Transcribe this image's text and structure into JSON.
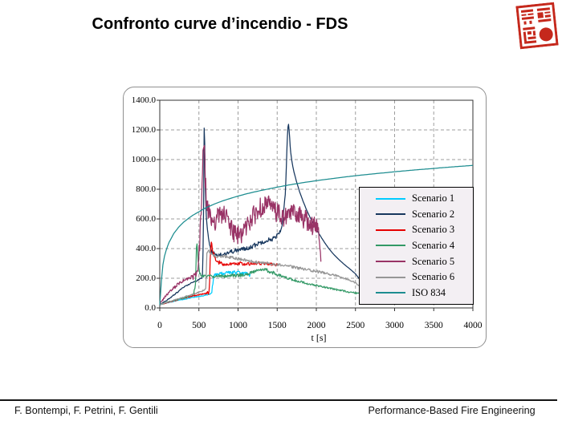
{
  "slide": {
    "title": "Confronto curve d’incendio - FDS"
  },
  "stamp": {
    "name": "red-chinese-seal",
    "color": "#c5281c"
  },
  "footer": {
    "authors": "F. Bontempi, F. Petrini, F. Gentili",
    "organization": "Performance-Based Fire Engineering"
  },
  "chart_data": {
    "type": "line",
    "title": "",
    "xlabel": "t [s]",
    "ylabel": "",
    "xlim": [
      0,
      4000
    ],
    "ylim": [
      0,
      1400
    ],
    "grid": true,
    "legend_position": "inside-right",
    "x_tick_labels": [
      "0",
      "500",
      "1000",
      "1500",
      "2000",
      "2500",
      "3000",
      "3500",
      "4000"
    ],
    "y_tick_labels": [
      "0.0",
      "200.0",
      "400.0",
      "600.0",
      "800.0",
      "1000.0",
      "1200.0",
      "1400.0"
    ],
    "series": [
      {
        "name": "Scenario 1",
        "color": "#00ccff",
        "dt": 7,
        "noise": [
          [
            0,
            2
          ],
          [
            640,
            3
          ],
          [
            690,
            14
          ],
          [
            1160,
            12
          ]
        ],
        "points": [
          [
            0,
            22
          ],
          [
            120,
            38
          ],
          [
            250,
            52
          ],
          [
            400,
            68
          ],
          [
            550,
            82
          ],
          [
            640,
            92
          ],
          [
            665,
            110
          ],
          [
            680,
            175
          ],
          [
            700,
            215
          ],
          [
            740,
            232
          ],
          [
            780,
            228
          ],
          [
            850,
            242
          ],
          [
            920,
            238
          ],
          [
            1000,
            240
          ],
          [
            1060,
            232
          ],
          [
            1120,
            228
          ],
          [
            1160,
            222
          ]
        ]
      },
      {
        "name": "Scenario 2",
        "color": "#17375e",
        "dt": 7,
        "noise": [
          [
            0,
            3
          ],
          [
            540,
            4
          ],
          [
            560,
            0
          ],
          [
            600,
            10
          ],
          [
            650,
            14
          ],
          [
            1500,
            16
          ],
          [
            1580,
            8
          ],
          [
            1640,
            0
          ],
          [
            2565,
            0
          ]
        ],
        "points": [
          [
            0,
            22
          ],
          [
            100,
            55
          ],
          [
            200,
            95
          ],
          [
            300,
            138
          ],
          [
            400,
            168
          ],
          [
            480,
            185
          ],
          [
            545,
            205
          ],
          [
            558,
            500
          ],
          [
            566,
            1215
          ],
          [
            572,
            1190
          ],
          [
            580,
            860
          ],
          [
            592,
            640
          ],
          [
            605,
            540
          ],
          [
            625,
            455
          ],
          [
            650,
            395
          ],
          [
            700,
            360
          ],
          [
            780,
            358
          ],
          [
            860,
            372
          ],
          [
            940,
            383
          ],
          [
            1020,
            392
          ],
          [
            1100,
            400
          ],
          [
            1180,
            415
          ],
          [
            1260,
            435
          ],
          [
            1340,
            452
          ],
          [
            1420,
            462
          ],
          [
            1480,
            475
          ],
          [
            1530,
            505
          ],
          [
            1570,
            570
          ],
          [
            1605,
            780
          ],
          [
            1630,
            1150
          ],
          [
            1642,
            1255
          ],
          [
            1655,
            1180
          ],
          [
            1670,
            1060
          ],
          [
            1690,
            980
          ],
          [
            1715,
            915
          ],
          [
            1745,
            855
          ],
          [
            1785,
            785
          ],
          [
            1830,
            720
          ],
          [
            1880,
            655
          ],
          [
            1930,
            600
          ],
          [
            1985,
            545
          ],
          [
            2040,
            495
          ],
          [
            2100,
            445
          ],
          [
            2160,
            400
          ],
          [
            2220,
            362
          ],
          [
            2290,
            325
          ],
          [
            2360,
            292
          ],
          [
            2430,
            262
          ],
          [
            2500,
            230
          ],
          [
            2565,
            185
          ]
        ]
      },
      {
        "name": "Scenario 3",
        "color": "#e60000",
        "dt": 7,
        "noise": [
          [
            0,
            3
          ],
          [
            600,
            5
          ],
          [
            640,
            25
          ],
          [
            700,
            18
          ],
          [
            800,
            12
          ],
          [
            1515,
            10
          ]
        ],
        "points": [
          [
            0,
            22
          ],
          [
            120,
            40
          ],
          [
            250,
            58
          ],
          [
            380,
            75
          ],
          [
            500,
            90
          ],
          [
            600,
            100
          ],
          [
            632,
            108
          ],
          [
            645,
            330
          ],
          [
            655,
            462
          ],
          [
            668,
            420
          ],
          [
            685,
            360
          ],
          [
            710,
            330
          ],
          [
            760,
            305
          ],
          [
            820,
            292
          ],
          [
            900,
            296
          ],
          [
            1000,
            302
          ],
          [
            1100,
            295
          ],
          [
            1200,
            300
          ],
          [
            1290,
            302
          ],
          [
            1380,
            296
          ],
          [
            1460,
            292
          ],
          [
            1515,
            288
          ]
        ]
      },
      {
        "name": "Scenario 4",
        "color": "#339966",
        "dt": 7,
        "noise": [
          [
            0,
            3
          ],
          [
            430,
            4
          ],
          [
            470,
            15
          ],
          [
            520,
            10
          ],
          [
            1400,
            12
          ],
          [
            1600,
            8
          ],
          [
            2565,
            5
          ]
        ],
        "points": [
          [
            0,
            22
          ],
          [
            120,
            42
          ],
          [
            250,
            60
          ],
          [
            360,
            76
          ],
          [
            430,
            92
          ],
          [
            455,
            150
          ],
          [
            472,
            455
          ],
          [
            488,
            330
          ],
          [
            505,
            245
          ],
          [
            525,
            218
          ],
          [
            600,
            212
          ],
          [
            700,
            214
          ],
          [
            800,
            214
          ],
          [
            900,
            220
          ],
          [
            1000,
            218
          ],
          [
            1090,
            226
          ],
          [
            1180,
            240
          ],
          [
            1255,
            256
          ],
          [
            1310,
            262
          ],
          [
            1370,
            254
          ],
          [
            1430,
            240
          ],
          [
            1510,
            224
          ],
          [
            1600,
            206
          ],
          [
            1700,
            190
          ],
          [
            1800,
            176
          ],
          [
            1900,
            162
          ],
          [
            2000,
            151
          ],
          [
            2100,
            141
          ],
          [
            2200,
            130
          ],
          [
            2300,
            119
          ],
          [
            2400,
            109
          ],
          [
            2500,
            100
          ],
          [
            2565,
            94
          ]
        ]
      },
      {
        "name": "Scenario 5",
        "color": "#993366",
        "dt": 6,
        "noise": [
          [
            0,
            6
          ],
          [
            400,
            14
          ],
          [
            490,
            30
          ],
          [
            520,
            90
          ],
          [
            600,
            80
          ],
          [
            700,
            68
          ],
          [
            2020,
            66
          ],
          [
            2045,
            20
          ],
          [
            2058,
            8
          ]
        ],
        "points": [
          [
            0,
            25
          ],
          [
            60,
            70
          ],
          [
            120,
            105
          ],
          [
            180,
            135
          ],
          [
            240,
            162
          ],
          [
            300,
            182
          ],
          [
            360,
            196
          ],
          [
            420,
            208
          ],
          [
            460,
            220
          ],
          [
            490,
            260
          ],
          [
            510,
            420
          ],
          [
            530,
            700
          ],
          [
            548,
            950
          ],
          [
            560,
            1140
          ],
          [
            572,
            1000
          ],
          [
            585,
            820
          ],
          [
            600,
            700
          ],
          [
            625,
            630
          ],
          [
            660,
            600
          ],
          [
            700,
            585
          ],
          [
            745,
            615
          ],
          [
            790,
            638
          ],
          [
            840,
            620
          ],
          [
            890,
            565
          ],
          [
            940,
            510
          ],
          [
            990,
            482
          ],
          [
            1040,
            498
          ],
          [
            1090,
            535
          ],
          [
            1140,
            575
          ],
          [
            1190,
            615
          ],
          [
            1240,
            648
          ],
          [
            1290,
            678
          ],
          [
            1340,
            700
          ],
          [
            1390,
            692
          ],
          [
            1440,
            672
          ],
          [
            1490,
            645
          ],
          [
            1540,
            622
          ],
          [
            1590,
            602
          ],
          [
            1640,
            618
          ],
          [
            1690,
            648
          ],
          [
            1740,
            640
          ],
          [
            1790,
            622
          ],
          [
            1840,
            602
          ],
          [
            1890,
            582
          ],
          [
            1940,
            562
          ],
          [
            1990,
            545
          ],
          [
            2025,
            530
          ],
          [
            2045,
            430
          ],
          [
            2058,
            310
          ]
        ]
      },
      {
        "name": "Scenario 6",
        "color": "#969696",
        "dt": 7,
        "noise": [
          [
            0,
            3
          ],
          [
            580,
            4
          ],
          [
            610,
            10
          ],
          [
            2000,
            9
          ],
          [
            2565,
            5
          ]
        ],
        "points": [
          [
            0,
            22
          ],
          [
            120,
            42
          ],
          [
            240,
            62
          ],
          [
            360,
            82
          ],
          [
            470,
            100
          ],
          [
            560,
            118
          ],
          [
            588,
            132
          ],
          [
            602,
            375
          ],
          [
            618,
            390
          ],
          [
            645,
            372
          ],
          [
            690,
            356
          ],
          [
            740,
            348
          ],
          [
            800,
            352
          ],
          [
            860,
            346
          ],
          [
            920,
            340
          ],
          [
            980,
            334
          ],
          [
            1050,
            327
          ],
          [
            1130,
            318
          ],
          [
            1210,
            310
          ],
          [
            1300,
            305
          ],
          [
            1400,
            300
          ],
          [
            1500,
            294
          ],
          [
            1600,
            285
          ],
          [
            1700,
            276
          ],
          [
            1800,
            266
          ],
          [
            1900,
            256
          ],
          [
            2000,
            246
          ],
          [
            2100,
            236
          ],
          [
            2200,
            224
          ],
          [
            2300,
            209
          ],
          [
            2400,
            192
          ],
          [
            2500,
            170
          ],
          [
            2565,
            142
          ]
        ]
      },
      {
        "name": "ISO 834",
        "color": "#1d8d90",
        "dt": 20,
        "noise": [
          [
            0,
            0
          ],
          [
            4000,
            0
          ]
        ],
        "points": [
          [
            0,
            20
          ],
          [
            30,
            261
          ],
          [
            60,
            349
          ],
          [
            90,
            404
          ],
          [
            120,
            444
          ],
          [
            180,
            502
          ],
          [
            240,
            544
          ],
          [
            300,
            576
          ],
          [
            360,
            601
          ],
          [
            420,
            624
          ],
          [
            480,
            642
          ],
          [
            540,
            661
          ],
          [
            600,
            678
          ],
          [
            700,
            701
          ],
          [
            800,
            721
          ],
          [
            900,
            738
          ],
          [
            1000,
            754
          ],
          [
            1100,
            768
          ],
          [
            1200,
            781
          ],
          [
            1350,
            798
          ],
          [
            1500,
            814
          ],
          [
            1650,
            829
          ],
          [
            1800,
            842
          ],
          [
            1950,
            854
          ],
          [
            2100,
            865
          ],
          [
            2250,
            875
          ],
          [
            2400,
            885
          ],
          [
            2550,
            894
          ],
          [
            2700,
            902
          ],
          [
            2850,
            910
          ],
          [
            3000,
            918
          ],
          [
            3150,
            925
          ],
          [
            3300,
            932
          ],
          [
            3450,
            938
          ],
          [
            3600,
            945
          ],
          [
            3800,
            953
          ],
          [
            4000,
            961
          ]
        ]
      }
    ]
  }
}
